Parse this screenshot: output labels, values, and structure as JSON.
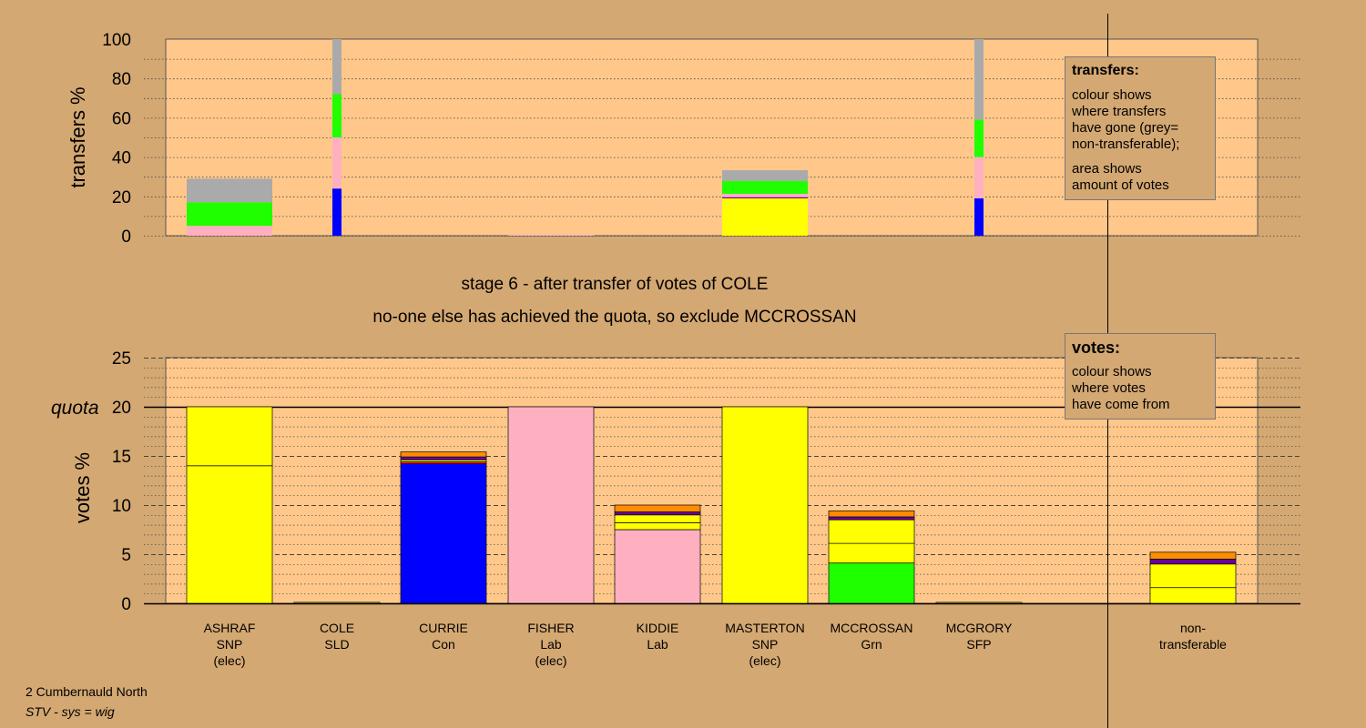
{
  "header": {
    "stage_title": "stage 6 - after transfer of votes of COLE",
    "stage_subtitle": "no-one else has achieved the quota, so exclude MCCROSSAN"
  },
  "transfers_box": {
    "heading": "transfers:",
    "line1": "colour shows",
    "line2": "where transfers",
    "line3": "have gone (grey=",
    "line4": "non-transferable);",
    "line5": "area shows",
    "line6": "amount of votes"
  },
  "votes_box": {
    "heading": "votes:",
    "line1": "colour shows",
    "line2": "where votes",
    "line3": "have come from"
  },
  "footer": {
    "ward": "2 Cumbernauld North",
    "system": "STV - sys = wig"
  },
  "colors": {
    "background": "#d4a872",
    "plot_area": "#ffc88a",
    "SNP": "#ffff00",
    "Lab": "#ffb0c0",
    "Con": "#0000ff",
    "Grn": "#20ff00",
    "nontransferable": "#aaaaaa",
    "orange": "#ff8c00",
    "purple": "#6a00a0",
    "red": "#ff2020"
  },
  "chart_data": [
    {
      "type": "bar",
      "title": "",
      "ylabel": "transfers %",
      "ylim": [
        0,
        100
      ],
      "yticks": [
        0,
        20,
        40,
        60,
        80,
        100
      ],
      "grid": "dotted every 10",
      "categories": [
        "ASHRAF",
        "COLE",
        "CURRIE",
        "FISHER",
        "KIDDIE",
        "MASTERTON",
        "MCCROSSAN",
        "MCGRORY"
      ],
      "stacks": [
        {
          "category": "ASHRAF",
          "segments": [
            {
              "color": "Lab",
              "value": 5
            },
            {
              "color": "Grn",
              "value": 12
            },
            {
              "color": "nontransferable",
              "value": 12
            }
          ]
        },
        {
          "category": "COLE",
          "narrow": true,
          "segments": [
            {
              "color": "Con",
              "value": 24
            },
            {
              "color": "Lab",
              "value": 26
            },
            {
              "color": "Grn",
              "value": 22
            },
            {
              "color": "nontransferable",
              "value": 28
            }
          ]
        },
        {
          "category": "FISHER",
          "segments": [
            {
              "color": "Lab",
              "value": 0.6
            }
          ]
        },
        {
          "category": "MASTERTON",
          "segments": [
            {
              "color": "SNP",
              "value": 19
            },
            {
              "color": "purple",
              "value": 0.6
            },
            {
              "color": "Lab",
              "value": 1.7
            },
            {
              "color": "Grn",
              "value": 6.5
            },
            {
              "color": "nontransferable",
              "value": 5.5
            }
          ]
        },
        {
          "category": "MCGRORY",
          "narrow": true,
          "segments": [
            {
              "color": "Con",
              "value": 19
            },
            {
              "color": "Lab",
              "value": 21
            },
            {
              "color": "Grn",
              "value": 19
            },
            {
              "color": "nontransferable",
              "value": 41
            }
          ]
        }
      ]
    },
    {
      "type": "bar",
      "title": "",
      "ylabel": "votes %",
      "ylim": [
        0,
        25
      ],
      "yticks": [
        0,
        5,
        10,
        15,
        20,
        25
      ],
      "quota": 20,
      "quota_label": "quota",
      "grid": "dashed every 5, dotted every 1",
      "categories": [
        {
          "name": "ASHRAF",
          "party": "SNP",
          "status": "(elec)"
        },
        {
          "name": "COLE",
          "party": "SLD",
          "status": ""
        },
        {
          "name": "CURRIE",
          "party": "Con",
          "status": ""
        },
        {
          "name": "FISHER",
          "party": "Lab",
          "status": "(elec)"
        },
        {
          "name": "KIDDIE",
          "party": "Lab",
          "status": ""
        },
        {
          "name": "MASTERTON",
          "party": "SNP",
          "status": "(elec)"
        },
        {
          "name": "MCCROSSAN",
          "party": "Grn",
          "status": ""
        },
        {
          "name": "MCGRORY",
          "party": "SFP",
          "status": ""
        },
        {
          "name": "non-",
          "party": "transferable",
          "status": ""
        }
      ],
      "stacks": [
        {
          "category": "ASHRAF",
          "segments": [
            {
              "color": "SNP",
              "value": 14
            },
            {
              "color": "SNP",
              "value": 6
            }
          ]
        },
        {
          "category": "COLE",
          "segments": [
            {
              "color": "SNP",
              "value": 0.1
            }
          ]
        },
        {
          "category": "CURRIE",
          "segments": [
            {
              "color": "Con",
              "value": 14.2
            },
            {
              "color": "red",
              "value": 0.2
            },
            {
              "color": "SNP",
              "value": 0.2
            },
            {
              "color": "purple",
              "value": 0.3
            },
            {
              "color": "orange",
              "value": 0.5
            }
          ]
        },
        {
          "category": "FISHER",
          "segments": [
            {
              "color": "Lab",
              "value": 20
            }
          ]
        },
        {
          "category": "KIDDIE",
          "segments": [
            {
              "color": "Lab",
              "value": 7.5
            },
            {
              "color": "SNP",
              "value": 0.7
            },
            {
              "color": "SNP",
              "value": 0.8
            },
            {
              "color": "purple",
              "value": 0.3
            },
            {
              "color": "orange",
              "value": 0.7
            }
          ]
        },
        {
          "category": "MASTERTON",
          "segments": [
            {
              "color": "SNP",
              "value": 20
            }
          ]
        },
        {
          "category": "MCCROSSAN",
          "segments": [
            {
              "color": "Grn",
              "value": 4.1
            },
            {
              "color": "SNP",
              "value": 2
            },
            {
              "color": "SNP",
              "value": 2.4
            },
            {
              "color": "purple",
              "value": 0.3
            },
            {
              "color": "orange",
              "value": 0.6
            }
          ]
        },
        {
          "category": "MCGRORY",
          "segments": [
            {
              "color": "SNP",
              "value": 0.1
            }
          ]
        },
        {
          "category": "non-",
          "segments": [
            {
              "color": "SNP",
              "value": 1.6
            },
            {
              "color": "SNP",
              "value": 2.4
            },
            {
              "color": "purple",
              "value": 0.5
            },
            {
              "color": "orange",
              "value": 0.7
            }
          ]
        }
      ]
    }
  ]
}
